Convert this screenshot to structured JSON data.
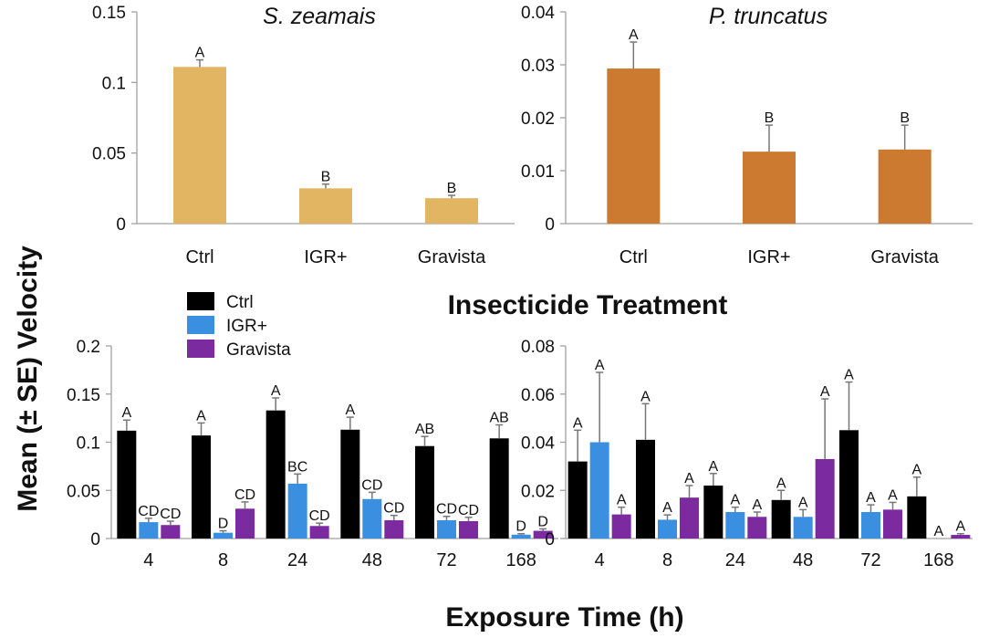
{
  "figure": {
    "ylabel": "Mean (± SE) Velocity",
    "top_xlabel": "Insecticide Treatment",
    "bottom_xlabel": "Exposure Time (h)",
    "legend": [
      {
        "name": "Ctrl",
        "color": "#000000"
      },
      {
        "name": "IGR+",
        "color": "#3b8fe0"
      },
      {
        "name": "Gravista",
        "color": "#7b2aa0"
      }
    ]
  },
  "chart_data": [
    {
      "id": "top-left",
      "type": "bar",
      "title": "S. zeamais",
      "categories": [
        "Ctrl",
        "IGR+",
        "Gravista"
      ],
      "values": [
        0.111,
        0.025,
        0.018
      ],
      "errors": [
        0.005,
        0.003,
        0.002
      ],
      "letters": [
        "A",
        "B",
        "B"
      ],
      "color": "#e2b563",
      "ylim": [
        0,
        0.15
      ],
      "yticks": [
        "0",
        "0.05",
        "0.1",
        "0.15"
      ],
      "ytick_values": [
        0,
        0.05,
        0.1,
        0.15
      ]
    },
    {
      "id": "top-right",
      "type": "bar",
      "title": "P. truncatus",
      "categories": [
        "Ctrl",
        "IGR+",
        "Gravista"
      ],
      "values": [
        0.0293,
        0.0136,
        0.014
      ],
      "errors": [
        0.005,
        0.005,
        0.0046
      ],
      "letters": [
        "A",
        "B",
        "B"
      ],
      "color": "#cc7a30",
      "ylim": [
        0,
        0.04
      ],
      "yticks": [
        "0",
        "0.01",
        "0.02",
        "0.03",
        "0.04"
      ],
      "ytick_values": [
        0,
        0.01,
        0.02,
        0.03,
        0.04
      ]
    },
    {
      "id": "bottom-left",
      "type": "bar",
      "categories": [
        "4",
        "8",
        "24",
        "48",
        "72",
        "168"
      ],
      "ylim": [
        0,
        0.2
      ],
      "yticks": [
        "0",
        "0.05",
        "0.1",
        "0.15",
        "0.2"
      ],
      "ytick_values": [
        0,
        0.05,
        0.1,
        0.15,
        0.2
      ],
      "series": [
        {
          "name": "Ctrl",
          "color": "#000000",
          "values": [
            0.112,
            0.107,
            0.133,
            0.113,
            0.096,
            0.104
          ],
          "errors": [
            0.011,
            0.013,
            0.013,
            0.013,
            0.01,
            0.014
          ],
          "letters": [
            "A",
            "A",
            "A",
            "A",
            "AB",
            "AB"
          ]
        },
        {
          "name": "IGR+",
          "color": "#3b8fe0",
          "values": [
            0.017,
            0.006,
            0.057,
            0.041,
            0.019,
            0.004
          ],
          "errors": [
            0.004,
            0.002,
            0.01,
            0.007,
            0.004,
            0.001
          ],
          "letters": [
            "CD",
            "D",
            "BC",
            "CD",
            "CD",
            "D"
          ]
        },
        {
          "name": "Gravista",
          "color": "#7b2aa0",
          "values": [
            0.014,
            0.031,
            0.013,
            0.019,
            0.018,
            0.008
          ],
          "errors": [
            0.004,
            0.007,
            0.003,
            0.005,
            0.004,
            0.002
          ],
          "letters": [
            "CD",
            "CD",
            "CD",
            "CD",
            "CD",
            "D"
          ]
        }
      ]
    },
    {
      "id": "bottom-right",
      "type": "bar",
      "categories": [
        "4",
        "8",
        "24",
        "48",
        "72",
        "168"
      ],
      "ylim": [
        0,
        0.08
      ],
      "yticks": [
        "0",
        "0.02",
        "0.04",
        "0.06",
        "0.08"
      ],
      "ytick_values": [
        0,
        0.02,
        0.04,
        0.06,
        0.08
      ],
      "series": [
        {
          "name": "Ctrl",
          "color": "#000000",
          "values": [
            0.032,
            0.041,
            0.022,
            0.016,
            0.045,
            0.0175
          ],
          "errors": [
            0.013,
            0.015,
            0.005,
            0.004,
            0.02,
            0.008
          ],
          "letters": [
            "A",
            "A",
            "A",
            "A",
            "A",
            "A"
          ]
        },
        {
          "name": "IGR+",
          "color": "#3b8fe0",
          "values": [
            0.04,
            0.0078,
            0.011,
            0.009,
            0.011,
            0.0
          ],
          "errors": [
            0.029,
            0.002,
            0.002,
            0.003,
            0.003,
            0.0
          ],
          "letters": [
            "A",
            "A",
            "A",
            "A",
            "A",
            "A"
          ]
        },
        {
          "name": "Gravista",
          "color": "#7b2aa0",
          "values": [
            0.01,
            0.017,
            0.009,
            0.033,
            0.012,
            0.0015
          ],
          "errors": [
            0.003,
            0.005,
            0.002,
            0.025,
            0.003,
            0.0005
          ],
          "letters": [
            "A",
            "A",
            "A",
            "A",
            "A",
            "A"
          ]
        }
      ]
    }
  ]
}
